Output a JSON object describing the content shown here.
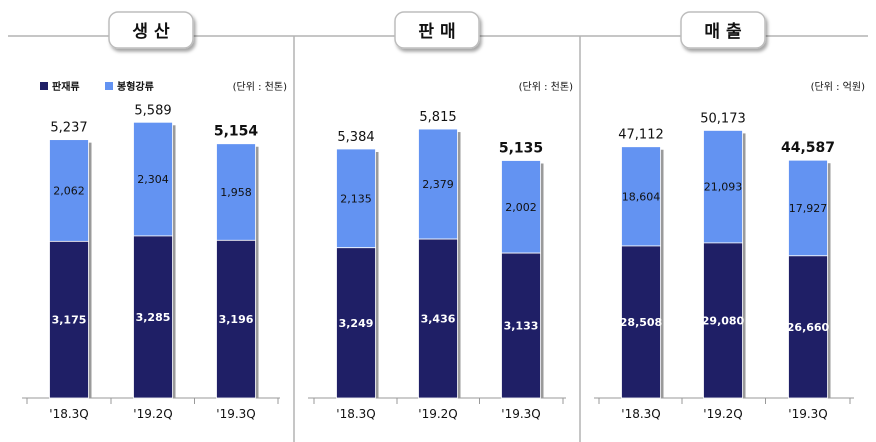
{
  "colors": {
    "bottom": "#1f1f66",
    "top": "#6393f2",
    "frame": "#b3b3b3",
    "title_border": "#bdbdbd"
  },
  "legend": {
    "bottom_label": "판재류",
    "top_label": "봉형강류"
  },
  "chart_data": [
    {
      "type": "bar",
      "title": "생 산",
      "unit": "(단위 : 천톤)",
      "categories": [
        "'18.3Q",
        "'19.2Q",
        "'19.3Q"
      ],
      "series": [
        {
          "name": "판재류",
          "values": [
            3175,
            3285,
            3196
          ]
        },
        {
          "name": "봉형강류",
          "values": [
            2062,
            2304,
            1958
          ]
        }
      ],
      "totals": [
        5237,
        5589,
        5154
      ],
      "ylim": [
        0,
        6000
      ]
    },
    {
      "type": "bar",
      "title": "판 매",
      "unit": "(단위 : 천톤)",
      "categories": [
        "'18.3Q",
        "'19.2Q",
        "'19.3Q"
      ],
      "series": [
        {
          "name": "판재류",
          "values": [
            3249,
            3436,
            3133
          ]
        },
        {
          "name": "봉형강류",
          "values": [
            2135,
            2379,
            2002
          ]
        }
      ],
      "totals": [
        5384,
        5815,
        5135
      ],
      "ylim": [
        0,
        6400
      ]
    },
    {
      "type": "bar",
      "title": "매 출",
      "unit": "(단위 : 억원)",
      "categories": [
        "'18.3Q",
        "'19.2Q",
        "'19.3Q"
      ],
      "series": [
        {
          "name": "판재류",
          "values": [
            28508,
            29080,
            26660
          ]
        },
        {
          "name": "봉형강류",
          "values": [
            18604,
            21093,
            17927
          ]
        }
      ],
      "totals": [
        47112,
        50173,
        44587
      ],
      "ylim": [
        0,
        55500
      ]
    }
  ]
}
